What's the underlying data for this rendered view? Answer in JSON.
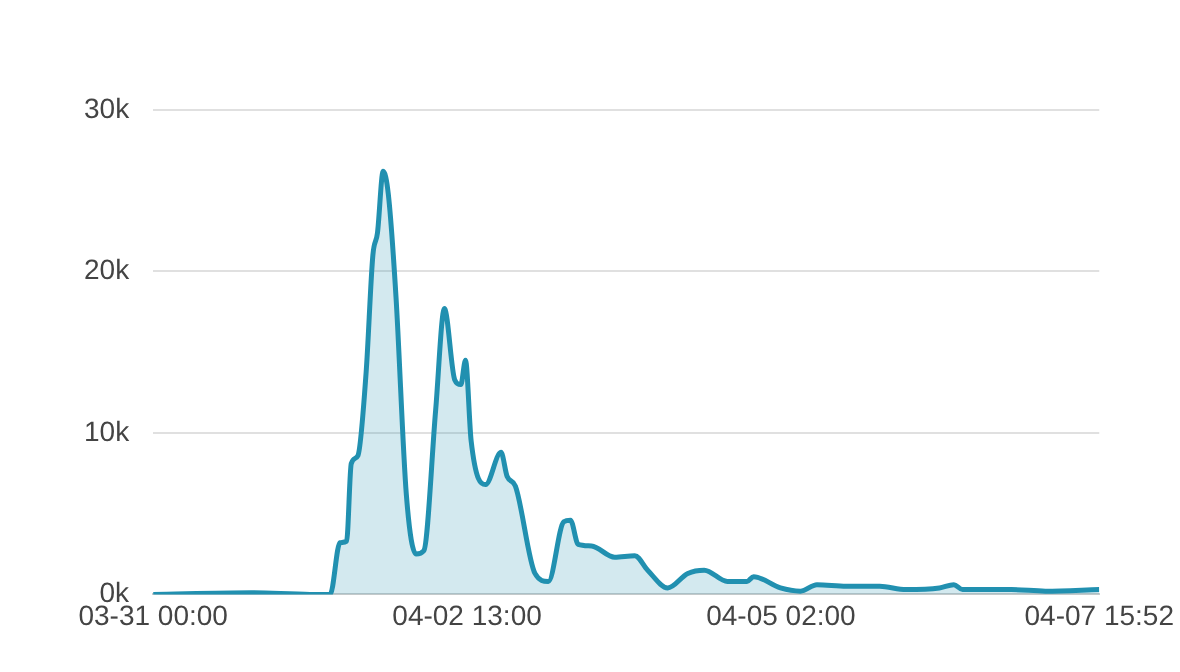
{
  "chart_data": {
    "type": "area",
    "x": [
      "--03-31T00:00",
      "--03-31T19:00",
      "--04-01T06:30",
      "--04-01T10:24",
      "--04-01T12:18",
      "--04-01T13:36",
      "--04-01T14:30",
      "--04-01T15:48",
      "--04-01T17:24",
      "--04-01T18:42",
      "--04-01T19:36",
      "--04-01T20:42",
      "--04-01T21:42",
      "--04-01T23:12",
      "--04-02T01:12",
      "--04-02T03:06",
      "--04-02T04:36",
      "--04-02T06:54",
      "--04-02T08:36",
      "--04-02T10:36",
      "--04-02T11:48",
      "--04-02T12:42",
      "--04-02T13:48",
      "--04-02T16:36",
      "--04-02T19:36",
      "--04-02T20:48",
      "--04-02T22:24",
      "--04-03T02:12",
      "--04-03T04:48",
      "--04-03T07:48",
      "--04-03T09:06",
      "--04-03T10:36",
      "--04-03T13:12",
      "--04-03T17:42",
      "--04-03T21:36",
      "--04-04T00:06",
      "--04-04T04:00",
      "--04-04T07:54",
      "--04-04T11:06",
      "--04-04T15:36",
      "--04-04T19:24",
      "--04-04T20:42",
      "--04-05T01:54",
      "--04-05T05:48",
      "--04-05T09:00",
      "--04-05T14:42",
      "--04-05T21:12",
      "--04-06T02:18",
      "--04-06T08:48",
      "--04-06T11:36",
      "--04-06T13:18",
      "--04-06T22:48",
      "--04-07T05:24",
      "--04-07T15:52"
    ],
    "series": [
      {
        "color": "#2190b0",
        "values": [
          0,
          100,
          0,
          0,
          3200,
          3300,
          8100,
          8600,
          13800,
          21000,
          22400,
          26200,
          24800,
          18400,
          6200,
          2500,
          2700,
          11400,
          17700,
          13300,
          13000,
          14500,
          9500,
          6800,
          8800,
          7300,
          6700,
          1300,
          800,
          4500,
          4600,
          3100,
          3000,
          2300,
          2400,
          1500,
          400,
          1300,
          1500,
          800,
          800,
          1100,
          400,
          200,
          600,
          500,
          500,
          300,
          400,
          600,
          300,
          300,
          200,
          300
        ]
      }
    ],
    "xlim": [
      "--03-31T00:00",
      "--04-07T15:52"
    ],
    "xticks": [
      {
        "value": "--03-31T00:00",
        "label": "03-31 00:00"
      },
      {
        "value": "--04-02T13:00",
        "label": "04-02 13:00"
      },
      {
        "value": "--04-05T02:00",
        "label": "04-05 02:00"
      },
      {
        "value": "--04-07T15:52",
        "label": "04-07 15:52"
      }
    ],
    "ylim": [
      0,
      30000
    ],
    "yticks": [
      {
        "value": 0,
        "label": "0k"
      },
      {
        "value": 10000,
        "label": "10k"
      },
      {
        "value": 20000,
        "label": "20k"
      },
      {
        "value": 30000,
        "label": "30k"
      }
    ],
    "grid": "y",
    "legend": false,
    "marker": "none",
    "line_style": "solid"
  }
}
